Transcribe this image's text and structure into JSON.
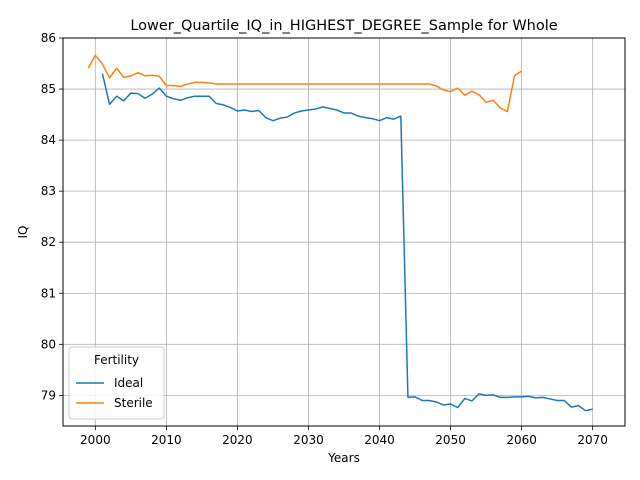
{
  "chart_data": {
    "type": "line",
    "title": "Lower_Quartile_IQ_in_HIGHEST_DEGREE_Sample for Whole",
    "xlabel": "Years",
    "ylabel": "IQ",
    "xlim": [
      1995.45,
      2074.55
    ],
    "ylim": [
      78.4,
      86.0
    ],
    "xticks": [
      2000,
      2010,
      2020,
      2030,
      2040,
      2050,
      2060,
      2070
    ],
    "yticks": [
      79,
      80,
      81,
      82,
      83,
      84,
      85,
      86
    ],
    "grid": true,
    "legend": {
      "title": "Fertility",
      "placement": "lower-left"
    },
    "series": [
      {
        "name": "Ideal",
        "color": "#1f77b4",
        "x": [
          2001,
          2002,
          2003,
          2004,
          2005,
          2006,
          2007,
          2008,
          2009,
          2010,
          2011,
          2012,
          2013,
          2014,
          2015,
          2016,
          2017,
          2018,
          2019,
          2020,
          2021,
          2022,
          2023,
          2024,
          2025,
          2026,
          2027,
          2028,
          2029,
          2030,
          2031,
          2032,
          2033,
          2034,
          2035,
          2036,
          2037,
          2038,
          2039,
          2040,
          2041,
          2042,
          2043,
          2044,
          2045,
          2046,
          2047,
          2048,
          2049,
          2050,
          2051,
          2052,
          2053,
          2054,
          2055,
          2056,
          2057,
          2058,
          2059,
          2060,
          2061,
          2062,
          2063,
          2064,
          2065,
          2066,
          2067,
          2068,
          2069,
          2070
        ],
        "y": [
          85.3,
          84.7,
          84.86,
          84.77,
          84.92,
          84.91,
          84.82,
          84.9,
          85.02,
          84.86,
          84.81,
          84.78,
          84.83,
          84.86,
          84.86,
          84.86,
          84.72,
          84.69,
          84.64,
          84.57,
          84.59,
          84.56,
          84.58,
          84.44,
          84.38,
          84.43,
          84.45,
          84.53,
          84.57,
          84.59,
          84.61,
          84.65,
          84.62,
          84.59,
          84.53,
          84.53,
          84.47,
          84.44,
          84.42,
          84.38,
          84.44,
          84.41,
          84.47,
          78.96,
          78.97,
          78.9,
          78.9,
          78.87,
          78.81,
          78.83,
          78.76,
          78.94,
          78.89,
          79.03,
          79.0,
          79.01,
          78.96,
          78.96,
          78.97,
          78.97,
          78.98,
          78.95,
          78.96,
          78.93,
          78.9,
          78.9,
          78.77,
          78.8,
          78.7,
          78.73
        ]
      },
      {
        "name": "Sterile",
        "color": "#ff7f0e",
        "x": [
          1999,
          2000,
          2001,
          2002,
          2003,
          2004,
          2005,
          2006,
          2007,
          2008,
          2009,
          2010,
          2011,
          2012,
          2013,
          2014,
          2015,
          2016,
          2017,
          2018,
          2019,
          2020,
          2021,
          2022,
          2023,
          2024,
          2025,
          2026,
          2027,
          2028,
          2029,
          2030,
          2031,
          2032,
          2033,
          2034,
          2035,
          2036,
          2037,
          2038,
          2039,
          2040,
          2041,
          2042,
          2043,
          2044,
          2045,
          2046,
          2047,
          2048,
          2049,
          2050,
          2051,
          2052,
          2053,
          2054,
          2055,
          2056,
          2057,
          2058,
          2059,
          2060
        ],
        "y": [
          85.41,
          85.66,
          85.49,
          85.22,
          85.41,
          85.23,
          85.26,
          85.32,
          85.26,
          85.27,
          85.25,
          85.07,
          85.07,
          85.05,
          85.1,
          85.13,
          85.13,
          85.12,
          85.1,
          85.1,
          85.1,
          85.1,
          85.1,
          85.1,
          85.1,
          85.1,
          85.1,
          85.1,
          85.1,
          85.1,
          85.1,
          85.1,
          85.1,
          85.1,
          85.1,
          85.1,
          85.1,
          85.1,
          85.1,
          85.1,
          85.1,
          85.1,
          85.1,
          85.1,
          85.1,
          85.1,
          85.1,
          85.1,
          85.1,
          85.06,
          84.98,
          84.95,
          85.02,
          84.88,
          84.96,
          84.89,
          84.74,
          84.78,
          84.63,
          84.56,
          85.26,
          85.35
        ]
      }
    ]
  }
}
